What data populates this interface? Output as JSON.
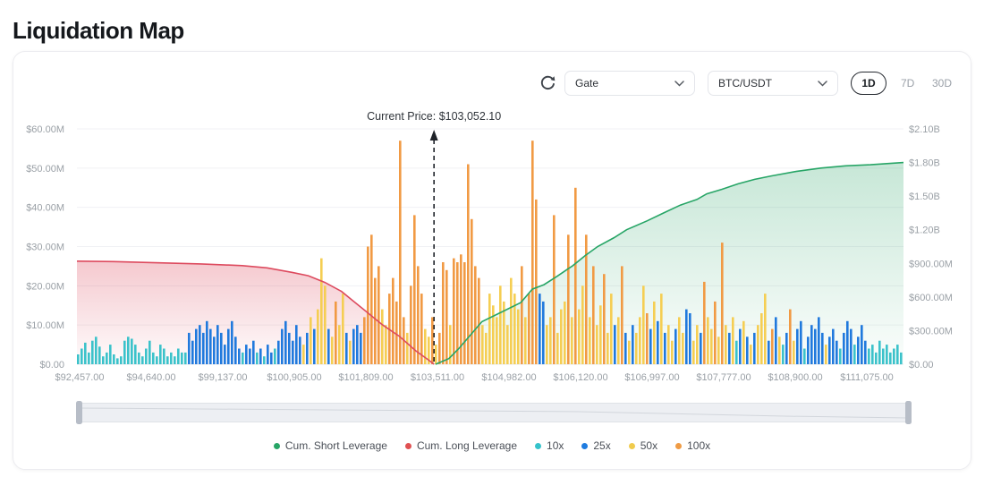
{
  "page": {
    "title": "Liquidation Map"
  },
  "toolbar": {
    "refresh_icon": "refresh",
    "exchange_select": {
      "value": "Gate"
    },
    "pair_select": {
      "value": "BTC/USDT"
    },
    "ranges": [
      {
        "label": "1D",
        "active": true
      },
      {
        "label": "7D",
        "active": false
      },
      {
        "label": "30D",
        "active": false
      }
    ]
  },
  "chart_data": {
    "type": "bar",
    "title": "Liquidation Map",
    "annotation": "Current Price: $103,052.10",
    "current_price": 103052.1,
    "current_price_frac": 0.432,
    "grid": true,
    "left_axis": {
      "max": 60,
      "unit": "$M",
      "ticks": [
        "$0.00",
        "$10.00M",
        "$20.00M",
        "$30.00M",
        "$40.00M",
        "$50.00M",
        "$60.00M"
      ]
    },
    "right_axis": {
      "max": 2.1,
      "unit": "$B",
      "ticks": [
        "$0.00",
        "$300.00M",
        "$600.00M",
        "$900.00M",
        "$1.20B",
        "$1.50B",
        "$1.80B",
        "$2.10B"
      ]
    },
    "x_ticks": [
      "$92,457.00",
      "$94,640.00",
      "$99,137.00",
      "$100,905.00",
      "$101,809.00",
      "$103,511.00",
      "$104,982.00",
      "$106,120.00",
      "$106,997.00",
      "$107,777.00",
      "$108,900.00",
      "$111,075.00"
    ],
    "bar_series_names": [
      "10x",
      "25x",
      "50x",
      "100x"
    ],
    "bar_colors": [
      "#3bc2ca",
      "#2079dd",
      "#f5ce53",
      "#f19a44"
    ],
    "bar_value_unit": "M (left axis)",
    "bars": [
      [
        2.5,
        0
      ],
      [
        4,
        0
      ],
      [
        5.5,
        0
      ],
      [
        3,
        0
      ],
      [
        6,
        0
      ],
      [
        7,
        0
      ],
      [
        4.5,
        0
      ],
      [
        2,
        0
      ],
      [
        3,
        0
      ],
      [
        5,
        0
      ],
      [
        2.5,
        0
      ],
      [
        1.5,
        0
      ],
      [
        2,
        0
      ],
      [
        6,
        0
      ],
      [
        7,
        0
      ],
      [
        6.5,
        0
      ],
      [
        5,
        0
      ],
      [
        3,
        0
      ],
      [
        2,
        0
      ],
      [
        4,
        0
      ],
      [
        6,
        0
      ],
      [
        3,
        0
      ],
      [
        2,
        0
      ],
      [
        5,
        0
      ],
      [
        4,
        0
      ],
      [
        2,
        0
      ],
      [
        3,
        0
      ],
      [
        2,
        0
      ],
      [
        4,
        0
      ],
      [
        3,
        0
      ],
      [
        3,
        0
      ],
      [
        8,
        1
      ],
      [
        6,
        1
      ],
      [
        9,
        1
      ],
      [
        10,
        1
      ],
      [
        8,
        1
      ],
      [
        11,
        1
      ],
      [
        9,
        1
      ],
      [
        7,
        1
      ],
      [
        10,
        1
      ],
      [
        8,
        1
      ],
      [
        5,
        1
      ],
      [
        9,
        1
      ],
      [
        11,
        1
      ],
      [
        7,
        1
      ],
      [
        4,
        1
      ],
      [
        3,
        0
      ],
      [
        5,
        1
      ],
      [
        4,
        1
      ],
      [
        6,
        1
      ],
      [
        3,
        0
      ],
      [
        4,
        1
      ],
      [
        2,
        0
      ],
      [
        5,
        1
      ],
      [
        3,
        1
      ],
      [
        4,
        0
      ],
      [
        6,
        1
      ],
      [
        9,
        1
      ],
      [
        11,
        1
      ],
      [
        8,
        1
      ],
      [
        6,
        1
      ],
      [
        10,
        1
      ],
      [
        7,
        1
      ],
      [
        5,
        2
      ],
      [
        8,
        1
      ],
      [
        12,
        2
      ],
      [
        9,
        1
      ],
      [
        14,
        2
      ],
      [
        27,
        2
      ],
      [
        20,
        2
      ],
      [
        9,
        1
      ],
      [
        7,
        2
      ],
      [
        16,
        3
      ],
      [
        10,
        2
      ],
      [
        18,
        2
      ],
      [
        8,
        1
      ],
      [
        6,
        2
      ],
      [
        9,
        1
      ],
      [
        10,
        1
      ],
      [
        8,
        1
      ],
      [
        12,
        3
      ],
      [
        30,
        3
      ],
      [
        33,
        3
      ],
      [
        22,
        3
      ],
      [
        25,
        3
      ],
      [
        14,
        2
      ],
      [
        10,
        2
      ],
      [
        18,
        3
      ],
      [
        22,
        3
      ],
      [
        16,
        3
      ],
      [
        57,
        3
      ],
      [
        12,
        3
      ],
      [
        8,
        2
      ],
      [
        20,
        3
      ],
      [
        38,
        3
      ],
      [
        25,
        3
      ],
      [
        18,
        3
      ],
      [
        9,
        2
      ],
      [
        7,
        2
      ],
      [
        12,
        3
      ],
      [
        5,
        2
      ],
      [
        8,
        3
      ],
      [
        26,
        3
      ],
      [
        24,
        3
      ],
      [
        10,
        2
      ],
      [
        27,
        3
      ],
      [
        26,
        3
      ],
      [
        28,
        3
      ],
      [
        26,
        3
      ],
      [
        51,
        3
      ],
      [
        37,
        3
      ],
      [
        25,
        3
      ],
      [
        22,
        3
      ],
      [
        10,
        2
      ],
      [
        8,
        2
      ],
      [
        18,
        2
      ],
      [
        15,
        2
      ],
      [
        12,
        2
      ],
      [
        20,
        2
      ],
      [
        16,
        2
      ],
      [
        10,
        2
      ],
      [
        22,
        2
      ],
      [
        18,
        2
      ],
      [
        14,
        2
      ],
      [
        25,
        3
      ],
      [
        12,
        2
      ],
      [
        18,
        3
      ],
      [
        57,
        3
      ],
      [
        42,
        3
      ],
      [
        18,
        1
      ],
      [
        16,
        1
      ],
      [
        10,
        2
      ],
      [
        12,
        2
      ],
      [
        38,
        3
      ],
      [
        8,
        2
      ],
      [
        14,
        2
      ],
      [
        16,
        2
      ],
      [
        33,
        3
      ],
      [
        12,
        2
      ],
      [
        45,
        3
      ],
      [
        14,
        2
      ],
      [
        20,
        2
      ],
      [
        33,
        3
      ],
      [
        12,
        2
      ],
      [
        25,
        3
      ],
      [
        10,
        2
      ],
      [
        15,
        2
      ],
      [
        23,
        3
      ],
      [
        8,
        2
      ],
      [
        18,
        2
      ],
      [
        10,
        1
      ],
      [
        12,
        2
      ],
      [
        25,
        3
      ],
      [
        8,
        1
      ],
      [
        6,
        2
      ],
      [
        10,
        1
      ],
      [
        8,
        2
      ],
      [
        12,
        2
      ],
      [
        20,
        2
      ],
      [
        13,
        3
      ],
      [
        9,
        1
      ],
      [
        16,
        2
      ],
      [
        11,
        1
      ],
      [
        18,
        2
      ],
      [
        8,
        1
      ],
      [
        10,
        2
      ],
      [
        6,
        2
      ],
      [
        9,
        1
      ],
      [
        12,
        2
      ],
      [
        8,
        2
      ],
      [
        14,
        1
      ],
      [
        13,
        1
      ],
      [
        6,
        2
      ],
      [
        10,
        2
      ],
      [
        8,
        1
      ],
      [
        21,
        3
      ],
      [
        12,
        2
      ],
      [
        9,
        2
      ],
      [
        16,
        3
      ],
      [
        7,
        2
      ],
      [
        31,
        3
      ],
      [
        10,
        2
      ],
      [
        8,
        1
      ],
      [
        12,
        2
      ],
      [
        6,
        0
      ],
      [
        9,
        1
      ],
      [
        11,
        2
      ],
      [
        7,
        1
      ],
      [
        5,
        2
      ],
      [
        8,
        1
      ],
      [
        10,
        2
      ],
      [
        13,
        2
      ],
      [
        18,
        2
      ],
      [
        6,
        1
      ],
      [
        9,
        3
      ],
      [
        12,
        1
      ],
      [
        7,
        2
      ],
      [
        5,
        0
      ],
      [
        8,
        1
      ],
      [
        14,
        3
      ],
      [
        6,
        2
      ],
      [
        9,
        1
      ],
      [
        11,
        1
      ],
      [
        4,
        0
      ],
      [
        7,
        1
      ],
      [
        10,
        1
      ],
      [
        9,
        1
      ],
      [
        12,
        1
      ],
      [
        8,
        1
      ],
      [
        5,
        2
      ],
      [
        7,
        1
      ],
      [
        9,
        1
      ],
      [
        6,
        1
      ],
      [
        4,
        0
      ],
      [
        8,
        1
      ],
      [
        11,
        1
      ],
      [
        9,
        1
      ],
      [
        5,
        0
      ],
      [
        7,
        1
      ],
      [
        10,
        1
      ],
      [
        6,
        1
      ],
      [
        4,
        0
      ],
      [
        5,
        0
      ],
      [
        3,
        0
      ],
      [
        6,
        0
      ],
      [
        4,
        0
      ],
      [
        5,
        0
      ],
      [
        3,
        0
      ],
      [
        4,
        0
      ],
      [
        5,
        0
      ],
      [
        3,
        0
      ]
    ],
    "lines": [
      {
        "name": "Cum. Long Leverage",
        "color": "#dd4a5e",
        "axis": "right",
        "points": [
          [
            0,
            0.92
          ],
          [
            0.05,
            0.915
          ],
          [
            0.1,
            0.905
          ],
          [
            0.15,
            0.895
          ],
          [
            0.2,
            0.88
          ],
          [
            0.23,
            0.86
          ],
          [
            0.26,
            0.82
          ],
          [
            0.28,
            0.79
          ],
          [
            0.3,
            0.73
          ],
          [
            0.32,
            0.65
          ],
          [
            0.335,
            0.56
          ],
          [
            0.35,
            0.47
          ],
          [
            0.37,
            0.35
          ],
          [
            0.39,
            0.25
          ],
          [
            0.41,
            0.12
          ],
          [
            0.425,
            0.04
          ],
          [
            0.432,
            0
          ]
        ]
      },
      {
        "name": "Cum. Short Leverage",
        "color": "#27a566",
        "axis": "right",
        "points": [
          [
            0.434,
            0
          ],
          [
            0.45,
            0.05
          ],
          [
            0.462,
            0.14
          ],
          [
            0.49,
            0.38
          ],
          [
            0.515,
            0.47
          ],
          [
            0.537,
            0.55
          ],
          [
            0.551,
            0.67
          ],
          [
            0.565,
            0.71
          ],
          [
            0.58,
            0.78
          ],
          [
            0.6,
            0.88
          ],
          [
            0.615,
            0.97
          ],
          [
            0.63,
            1.05
          ],
          [
            0.65,
            1.13
          ],
          [
            0.665,
            1.2
          ],
          [
            0.69,
            1.28
          ],
          [
            0.71,
            1.35
          ],
          [
            0.73,
            1.42
          ],
          [
            0.75,
            1.47
          ],
          [
            0.762,
            1.52
          ],
          [
            0.78,
            1.56
          ],
          [
            0.8,
            1.61
          ],
          [
            0.82,
            1.65
          ],
          [
            0.84,
            1.68
          ],
          [
            0.87,
            1.72
          ],
          [
            0.9,
            1.75
          ],
          [
            0.93,
            1.77
          ],
          [
            0.96,
            1.78
          ],
          [
            0.98,
            1.79
          ],
          [
            1.0,
            1.8
          ]
        ]
      }
    ]
  },
  "legend": [
    {
      "label": "Cum. Short Leverage",
      "color": "#27a566"
    },
    {
      "label": "Cum. Long Leverage",
      "color": "#e05152"
    },
    {
      "label": "10x",
      "color": "#35c3cb"
    },
    {
      "label": "25x",
      "color": "#1e7ce0"
    },
    {
      "label": "50x",
      "color": "#f0cb4d"
    },
    {
      "label": "100x",
      "color": "#ef9b45"
    }
  ]
}
